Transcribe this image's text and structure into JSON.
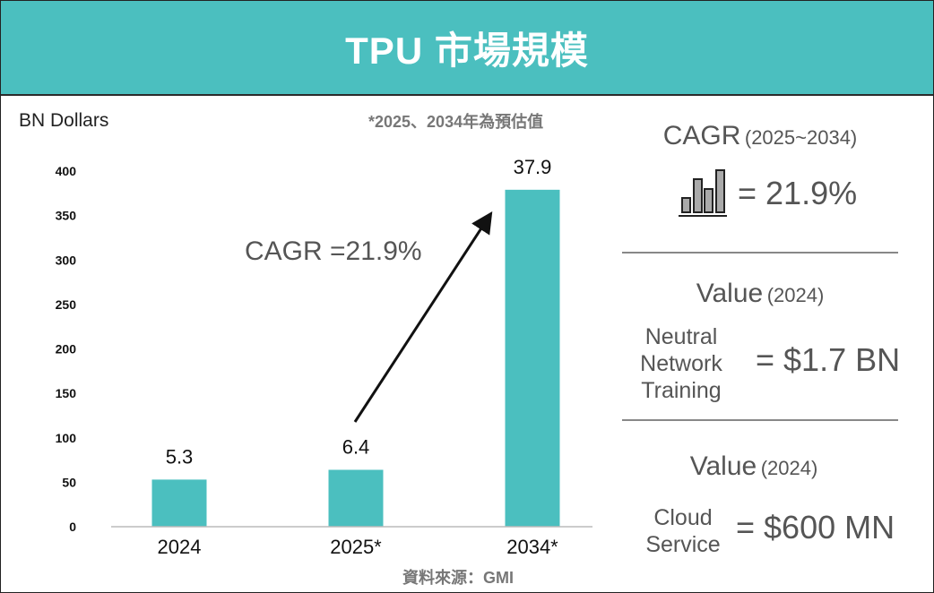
{
  "header": {
    "title": "TPU 市場規模"
  },
  "chart_data": {
    "type": "bar",
    "ylabel": "BN Dollars",
    "note": "*2025、2034年為預估值",
    "source": "資料來源：GMI",
    "categories": [
      "2024",
      "2025*",
      "2034*"
    ],
    "values": [
      53,
      64,
      379
    ],
    "data_labels": [
      "5.3",
      "6.4",
      "37.9"
    ],
    "yticks": [
      "0",
      "50",
      "100",
      "150",
      "200",
      "250",
      "300",
      "350",
      "400"
    ],
    "ylim": [
      0,
      400
    ],
    "bar_color": "#4BBFBF",
    "grid": false,
    "annotation": "CAGR =21.9%"
  },
  "panel": {
    "cagr": {
      "title": "CAGR",
      "period": "(2025~2034)",
      "icon": "bar-chart-icon",
      "value": "= 21.9%"
    },
    "value1": {
      "title": "Value",
      "year": "(2024)",
      "label_lines": [
        "Neutral",
        "Network",
        "Training"
      ],
      "value": "= $1.7 BN"
    },
    "value2": {
      "title": "Value",
      "year": "(2024)",
      "label_lines": [
        "Cloud",
        "Service"
      ],
      "value": "= $600 MN"
    }
  }
}
